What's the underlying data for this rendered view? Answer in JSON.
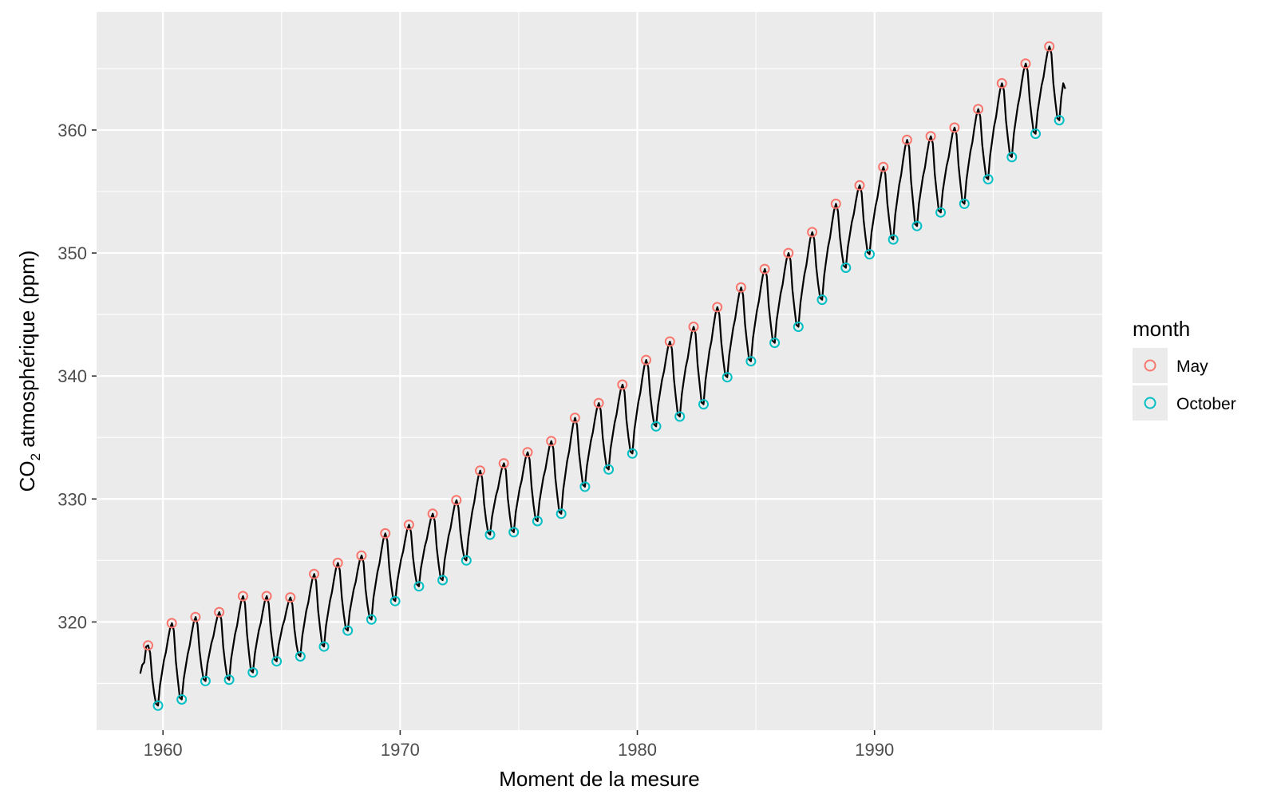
{
  "chart_data": {
    "type": "line",
    "xlabel": "Moment de la mesure",
    "ylabel": {
      "prefix": "CO",
      "subscript": "2",
      "suffix": " atmosphérique (ppm)"
    },
    "xlim": [
      1957.2,
      1999.6
    ],
    "ylim": [
      311.2,
      369.6
    ],
    "x_ticks": [
      1960,
      1970,
      1980,
      1990
    ],
    "y_ticks": [
      320,
      330,
      340,
      350,
      360
    ],
    "grid": true,
    "background": "#ebebeb",
    "line_color": "#000000",
    "start_year": 1959,
    "end_year": 1997,
    "pre_may_offsets": [
      {
        "month": 1,
        "value": -2.3
      },
      {
        "month": 2,
        "value": -1.6
      },
      {
        "month": 3,
        "value": -1.4
      },
      {
        "month": 4,
        "value": -0.1
      }
    ],
    "series": [
      {
        "name": "May",
        "color": "#F8766D",
        "x": [
          1959.37,
          1960.37,
          1961.37,
          1962.37,
          1963.37,
          1964.37,
          1965.37,
          1966.37,
          1967.37,
          1968.37,
          1969.37,
          1970.37,
          1971.37,
          1972.37,
          1973.37,
          1974.37,
          1975.37,
          1976.37,
          1977.37,
          1978.37,
          1979.37,
          1980.37,
          1981.37,
          1982.37,
          1983.37,
          1984.37,
          1985.37,
          1986.37,
          1987.37,
          1988.37,
          1989.37,
          1990.37,
          1991.37,
          1992.37,
          1993.37,
          1994.37,
          1995.37,
          1996.37,
          1997.37
        ],
        "values": [
          318.1,
          319.9,
          320.4,
          320.8,
          322.1,
          322.1,
          322.0,
          323.9,
          324.8,
          325.4,
          327.2,
          327.9,
          328.8,
          329.9,
          332.3,
          332.9,
          333.8,
          334.7,
          336.6,
          337.8,
          339.3,
          341.3,
          342.8,
          344.0,
          345.6,
          347.2,
          348.7,
          350.0,
          351.7,
          354.0,
          355.5,
          357.0,
          359.2,
          359.5,
          360.2,
          361.7,
          363.8,
          365.4,
          366.8
        ]
      },
      {
        "name": "October",
        "color": "#00BFC4",
        "x": [
          1959.79,
          1960.79,
          1961.79,
          1962.79,
          1963.79,
          1964.79,
          1965.79,
          1966.79,
          1967.79,
          1968.79,
          1969.79,
          1970.79,
          1971.79,
          1972.79,
          1973.79,
          1974.79,
          1975.79,
          1976.79,
          1977.79,
          1978.79,
          1979.79,
          1980.79,
          1981.79,
          1982.79,
          1983.79,
          1984.79,
          1985.79,
          1986.79,
          1987.79,
          1988.79,
          1989.79,
          1990.79,
          1991.79,
          1992.79,
          1993.79,
          1994.79,
          1995.79,
          1996.79,
          1997.79
        ],
        "values": [
          313.2,
          313.7,
          315.2,
          315.3,
          315.9,
          316.8,
          317.2,
          318.0,
          319.3,
          320.2,
          321.7,
          322.9,
          323.4,
          325.0,
          327.1,
          327.3,
          328.2,
          328.8,
          331.0,
          332.4,
          333.7,
          335.9,
          336.7,
          337.7,
          339.9,
          341.2,
          342.7,
          344.0,
          346.2,
          348.8,
          349.9,
          351.1,
          352.2,
          353.3,
          354.0,
          356.0,
          357.8,
          359.7,
          360.8
        ]
      }
    ],
    "line_end": {
      "x": 1997.96,
      "value": 364.2
    },
    "legend": {
      "title": "month",
      "position": "right",
      "items": [
        {
          "label": "May",
          "color": "#F8766D"
        },
        {
          "label": "October",
          "color": "#00BFC4"
        }
      ]
    }
  }
}
